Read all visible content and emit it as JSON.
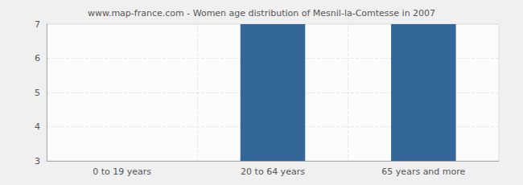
{
  "chart_data": {
    "type": "bar",
    "title": "www.map-france.com - Women age distribution of Mesnil-la-Comtesse in 2007",
    "categories": [
      "0 to 19 years",
      "20 to 64 years",
      "65 years and more"
    ],
    "values": [
      3,
      7,
      7
    ],
    "color": "#336699",
    "ylim": [
      3,
      7
    ],
    "yticks": [
      3,
      4,
      5,
      6,
      7
    ],
    "grid": true
  }
}
